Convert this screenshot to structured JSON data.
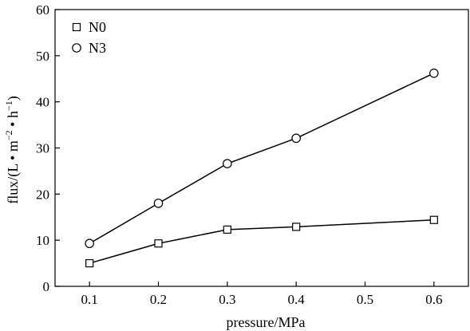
{
  "chart_data": {
    "type": "line",
    "title": "",
    "xlabel": "pressure/MPa",
    "ylabel": {
      "prefix": "flux/(L",
      "bullet1": " • ",
      "m": "m",
      "m_exp": "−2",
      "bullet2": " • ",
      "h": "h",
      "h_exp": "−1",
      "suffix": ")"
    },
    "xlim": [
      0.05,
      0.65
    ],
    "ylim": [
      0,
      60
    ],
    "xticks": [
      "0.1",
      "0.2",
      "0.3",
      "0.4",
      "0.5",
      "0.6"
    ],
    "yticks": [
      "0",
      "10",
      "20",
      "30",
      "40",
      "50",
      "60"
    ],
    "grid": false,
    "legend_position": "top-left",
    "series": [
      {
        "name": "N0",
        "marker": "square",
        "x": [
          0.1,
          0.2,
          0.3,
          0.4,
          0.6
        ],
        "y": [
          5.0,
          9.3,
          12.3,
          12.9,
          14.4
        ]
      },
      {
        "name": "N3",
        "marker": "circle",
        "x": [
          0.1,
          0.2,
          0.3,
          0.4,
          0.6
        ],
        "y": [
          9.3,
          18.0,
          26.6,
          32.1,
          46.2
        ]
      }
    ]
  },
  "colors": {
    "line": "#000000",
    "marker_fill": "#ffffff",
    "background": "#ffffff"
  }
}
